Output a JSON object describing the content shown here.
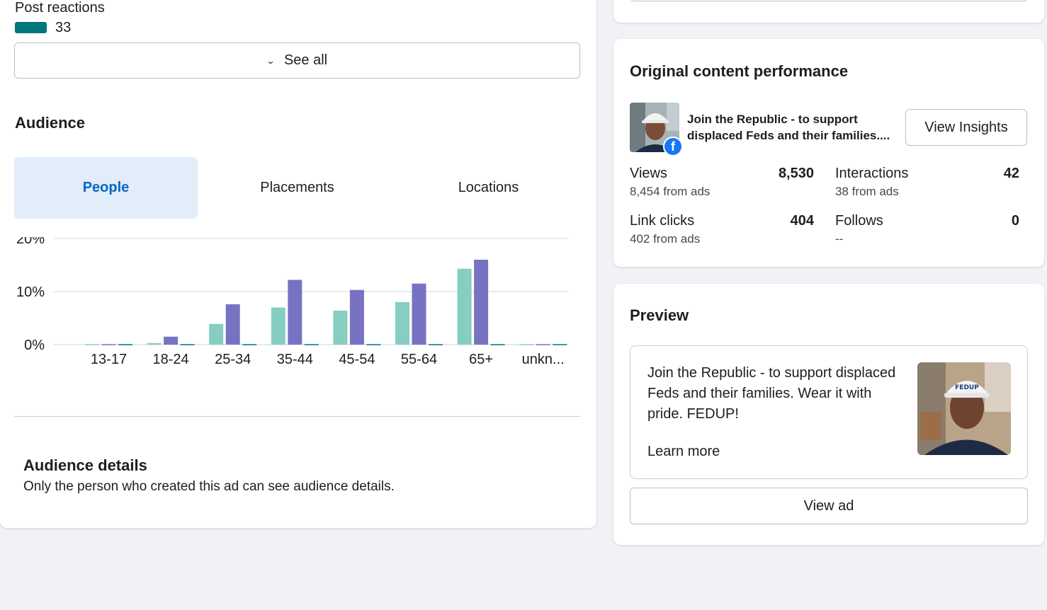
{
  "post_reactions": {
    "label": "Post reactions",
    "count": "33",
    "swatch_color": "#00777a",
    "see_all_label": "See all",
    "see_all_icon": "chevron-down-icon"
  },
  "audience": {
    "title": "Audience",
    "tabs": [
      {
        "label": "People",
        "active": true
      },
      {
        "label": "Placements",
        "active": false
      },
      {
        "label": "Locations",
        "active": false
      }
    ],
    "details_title": "Audience details",
    "details_text": "Only the person who created this ad can see audience details."
  },
  "chart_data": {
    "type": "bar",
    "categories": [
      "13-17",
      "18-24",
      "25-34",
      "35-44",
      "45-54",
      "55-64",
      "65+",
      "unkn..."
    ],
    "y_tick_labels": [
      "20%",
      "10%",
      "0%"
    ],
    "ylim": [
      0,
      20
    ],
    "grid": true,
    "series": [
      {
        "color": "#86cdc2",
        "values": [
          0.1,
          0.3,
          3.9,
          7.0,
          6.4,
          8.0,
          14.3,
          0.1
        ]
      },
      {
        "color": "#7773c2",
        "values": [
          0.1,
          1.5,
          7.6,
          12.2,
          10.3,
          11.5,
          16.0,
          0.1
        ]
      },
      {
        "color": "#00777a",
        "values": [
          0.1,
          0.1,
          0.1,
          0.1,
          0.1,
          0.1,
          0.1,
          0.1
        ]
      }
    ]
  },
  "performance": {
    "title": "Original content performance",
    "post_text": "Join the Republic - to support displaced Feds and their families....",
    "view_insights_label": "View Insights",
    "badge_icon": "facebook-icon",
    "metrics": [
      {
        "label": "Views",
        "value": "8,530",
        "sub": "8,454 from ads"
      },
      {
        "label": "Interactions",
        "value": "42",
        "sub": "38 from ads"
      },
      {
        "label": "Link clicks",
        "value": "404",
        "sub": "402 from ads"
      },
      {
        "label": "Follows",
        "value": "0",
        "sub": "--"
      }
    ]
  },
  "preview": {
    "title": "Preview",
    "text": "Join the Republic - to support displaced Feds and their families. Wear it with pride. FEDUP!",
    "learn_more": "Learn more",
    "hat_text": "FEDUP",
    "view_ad_label": "View ad"
  }
}
